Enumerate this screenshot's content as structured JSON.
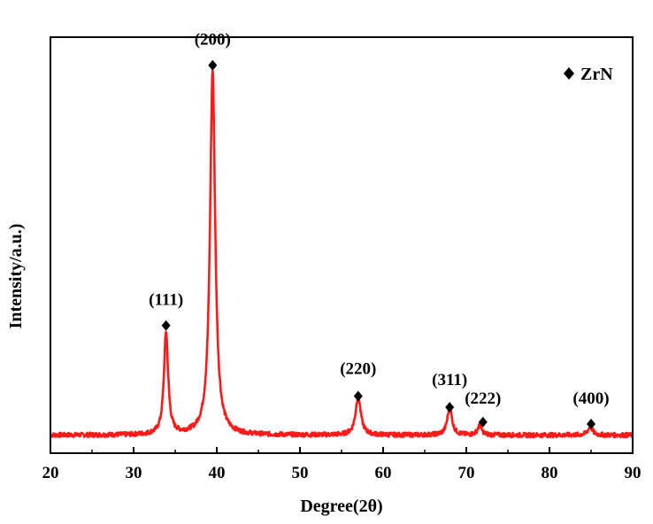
{
  "chart_data": {
    "type": "line",
    "xlabel": "Degree(2θ)",
    "ylabel": "Intensity/a.u.)",
    "xlim": [
      20,
      90
    ],
    "ylim": [
      0,
      100
    ],
    "xticks": [
      20,
      30,
      40,
      50,
      60,
      70,
      80,
      90
    ],
    "x_tick_labels": [
      "20",
      "30",
      "40",
      "50",
      "60",
      "70",
      "80",
      "90"
    ],
    "y_ticks_shown": false,
    "grid": false,
    "legend": {
      "placement": "top-right",
      "entries": [
        {
          "name": "ZrN",
          "marker": "diamond"
        }
      ]
    },
    "series": [
      {
        "name": "ZrN",
        "color": "#ff1a1a",
        "baseline": 2,
        "peaks": [
          {
            "x": 33.9,
            "height": 27.5,
            "width": 0.45
          },
          {
            "x": 39.5,
            "height": 98,
            "width": 0.55
          },
          {
            "x": 57.0,
            "height": 10.5,
            "width": 0.55
          },
          {
            "x": 68.0,
            "height": 7.5,
            "width": 0.5
          },
          {
            "x": 71.6,
            "height": 2.5,
            "width": 0.45
          },
          {
            "x": 84.9,
            "height": 2.2,
            "width": 0.5
          }
        ]
      }
    ],
    "annotations": [
      {
        "label": "(111)",
        "x": 33.9,
        "marker_y": 31.5,
        "label_y": 37
      },
      {
        "label": "(200)",
        "x": 39.5,
        "marker_y": 101.5,
        "label_y": 107
      },
      {
        "label": "(220)",
        "x": 57.0,
        "marker_y": 12.5,
        "label_y": 18.5
      },
      {
        "label": "(311)",
        "x": 68.0,
        "marker_y": 9.5,
        "label_y": 15.5
      },
      {
        "label": "(222)",
        "x": 72.0,
        "marker_y": 5.5,
        "label_y": 10.5
      },
      {
        "label": "(400)",
        "x": 85.0,
        "marker_y": 5.0,
        "label_y": 10.5
      }
    ]
  }
}
